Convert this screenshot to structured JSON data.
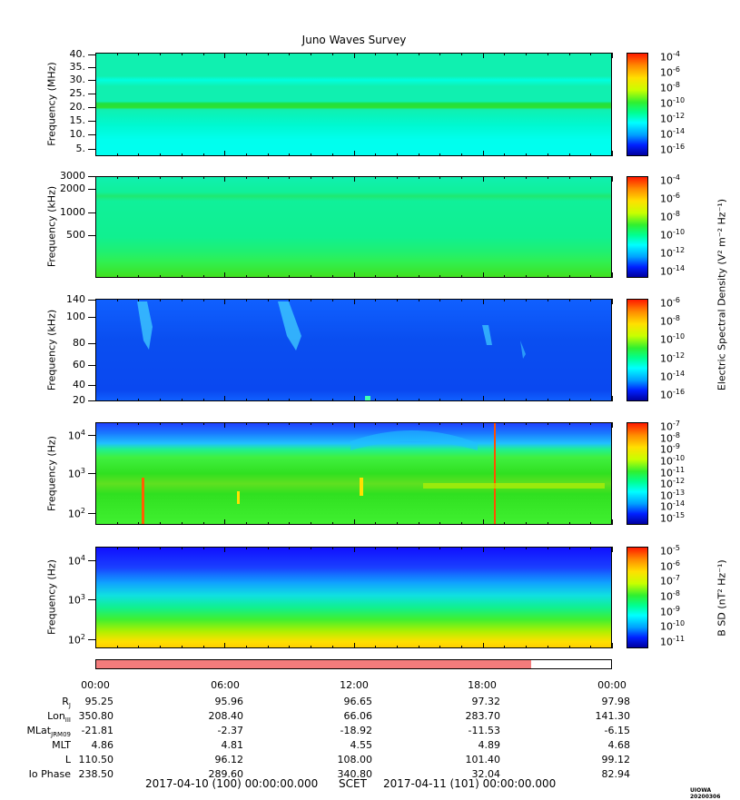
{
  "title": "Juno Waves Survey",
  "panels": [
    {
      "ylabel": "Frequency (MHz)",
      "yticks": [
        "40.",
        "35.",
        "30.",
        "25.",
        "20.",
        "15.",
        "10.",
        "5."
      ],
      "cbar": [
        "-4",
        "-6",
        "-8",
        "-10",
        "-12",
        "-14",
        "-16"
      ],
      "scale": "linear",
      "base_color": "#00f0c0"
    },
    {
      "ylabel": "Frequency (kHz)",
      "yticks": [
        "3000",
        "2000",
        "1000",
        "500"
      ],
      "cbar": [
        "-4",
        "-6",
        "-8",
        "-10",
        "-12",
        "-14"
      ],
      "scale": "log",
      "base_color": "#10f080"
    },
    {
      "ylabel": "Frequency (kHz)",
      "yticks": [
        "140",
        "100",
        "80",
        "60",
        "40",
        "20"
      ],
      "cbar": [
        "-6",
        "-8",
        "-10",
        "-12",
        "-14",
        "-16"
      ],
      "scale": "log",
      "base_color": "#0a50ff"
    },
    {
      "ylabel": "Frequency (Hz)",
      "yticks": [
        "10",
        "10",
        "10"
      ],
      "ytick_exps": [
        "4",
        "3",
        "2"
      ],
      "cbar": [
        "-7",
        "-8",
        "-9",
        "-10",
        "-11",
        "-12",
        "-13",
        "-14",
        "-15"
      ],
      "scale": "log",
      "base_color": "#30e020"
    },
    {
      "ylabel": "Frequency (Hz)",
      "yticks": [
        "10",
        "10",
        "10"
      ],
      "ytick_exps": [
        "4",
        "3",
        "2"
      ],
      "cbar": [
        "-5",
        "-6",
        "-7",
        "-8",
        "-9",
        "-10",
        "-11"
      ],
      "scale": "log",
      "base_color": "#20f040"
    }
  ],
  "cbar_base": "10",
  "esd_label": "Electric Spectral Density (V² m⁻² Hz⁻¹)",
  "bsd_label": "B SD (nT² Hz⁻¹)",
  "coverage_fraction": 0.845,
  "coverage_color": "#f47c7c",
  "ephemeris": {
    "times": [
      "00:00",
      "06:00",
      "12:00",
      "18:00",
      "00:00"
    ],
    "rows": [
      {
        "label": "R",
        "sub": "J",
        "values": [
          "95.25",
          "95.96",
          "96.65",
          "97.32",
          "97.98"
        ]
      },
      {
        "label": "Lon",
        "sub": "III",
        "values": [
          "350.80",
          "208.40",
          "66.06",
          "283.70",
          "141.30"
        ]
      },
      {
        "label": "MLat",
        "sub": "JRM09",
        "values": [
          "-21.81",
          "-2.37",
          "-18.92",
          "-11.53",
          "-6.15"
        ]
      },
      {
        "label": "MLT",
        "sub": "",
        "values": [
          "4.86",
          "4.81",
          "4.55",
          "4.89",
          "4.68"
        ]
      },
      {
        "label": "L",
        "sub": "",
        "values": [
          "110.50",
          "96.12",
          "108.00",
          "101.40",
          "99.12"
        ]
      },
      {
        "label": "Io Phase",
        "sub": "",
        "values": [
          "238.50",
          "289.60",
          "340.80",
          "32.04",
          "82.94"
        ]
      }
    ]
  },
  "footer": {
    "start": "2017-04-10 (100) 00:00:00.000",
    "scet": "SCET",
    "end": "2017-04-11 (101) 00:00:00.000"
  },
  "stamp": "UIOWA 20200306"
}
